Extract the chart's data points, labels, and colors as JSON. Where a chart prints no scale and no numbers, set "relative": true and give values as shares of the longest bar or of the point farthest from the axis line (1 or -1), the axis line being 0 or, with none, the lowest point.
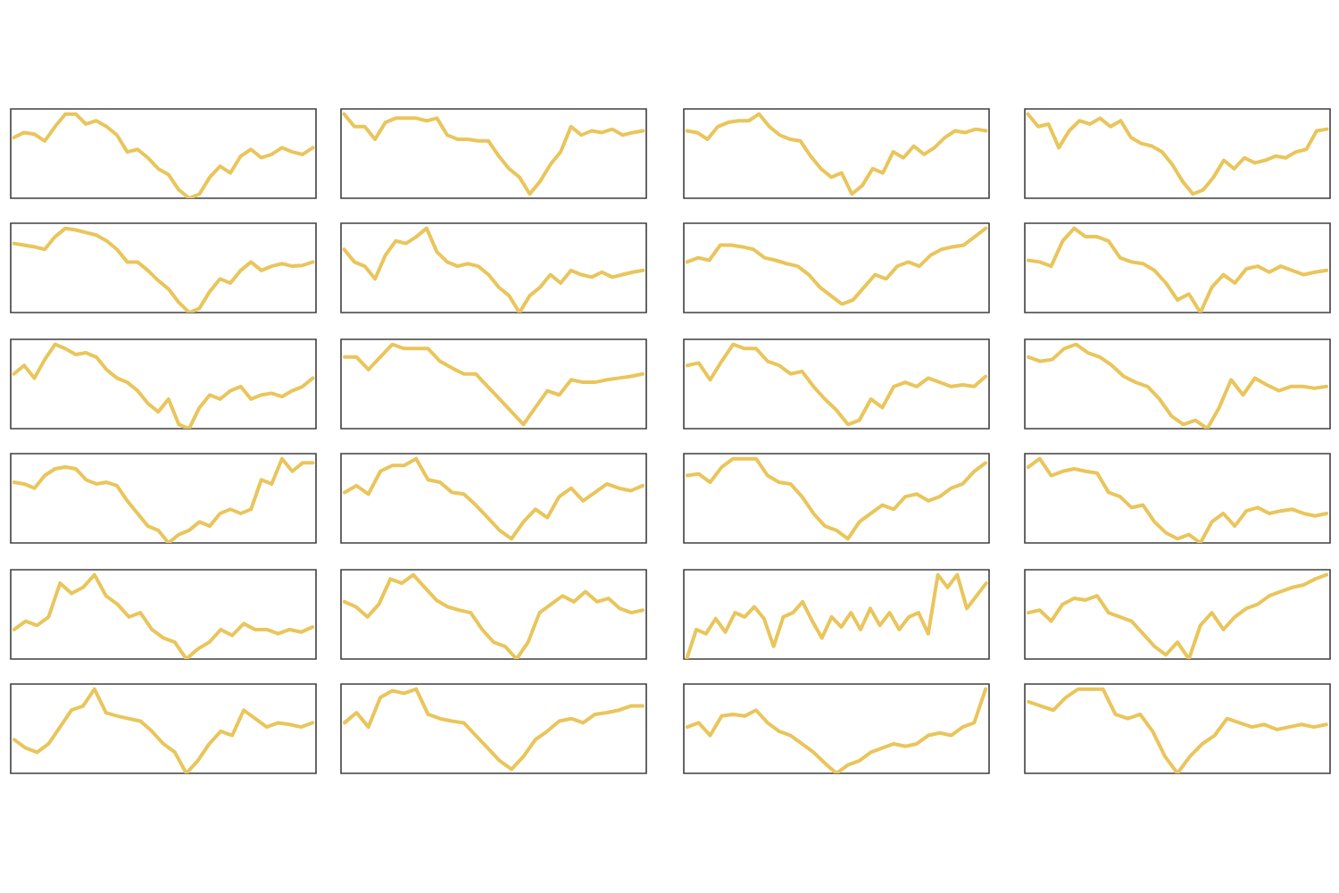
{
  "chart_data": [
    {
      "type": "line",
      "relative": true,
      "color": "#e9c55b",
      "categories": [
        null,
        null,
        null,
        null,
        null,
        null,
        null,
        null,
        null,
        null,
        null,
        null,
        null,
        null,
        null,
        null,
        null,
        null,
        null,
        null,
        null,
        null,
        null,
        null,
        null,
        null,
        null,
        null,
        null,
        null
      ],
      "values": [
        0.72,
        0.78,
        0.76,
        0.68,
        0.85,
        1.0,
        1.0,
        0.88,
        0.92,
        0.85,
        0.75,
        0.55,
        0.58,
        0.48,
        0.35,
        0.28,
        0.1,
        0.0,
        0.05,
        0.25,
        0.38,
        0.3,
        0.5,
        0.58,
        0.48,
        0.52,
        0.6,
        0.55,
        0.52,
        0.6
      ]
    },
    {
      "type": "line",
      "relative": true,
      "color": "#e9c55b",
      "categories": [
        null,
        null,
        null,
        null,
        null,
        null,
        null,
        null,
        null,
        null,
        null,
        null,
        null,
        null,
        null,
        null,
        null,
        null,
        null,
        null,
        null,
        null,
        null,
        null,
        null,
        null,
        null,
        null,
        null,
        null
      ],
      "values": [
        1.0,
        0.85,
        0.85,
        0.7,
        0.9,
        0.95,
        0.95,
        0.95,
        0.92,
        0.95,
        0.75,
        0.7,
        0.7,
        0.68,
        0.68,
        0.5,
        0.35,
        0.25,
        0.05,
        0.2,
        0.4,
        0.55,
        0.85,
        0.75,
        0.8,
        0.78,
        0.82,
        0.75,
        0.78,
        0.8
      ]
    },
    {
      "type": "line",
      "relative": true,
      "color": "#e9c55b",
      "categories": [
        null,
        null,
        null,
        null,
        null,
        null,
        null,
        null,
        null,
        null,
        null,
        null,
        null,
        null,
        null,
        null,
        null,
        null,
        null,
        null,
        null,
        null,
        null,
        null,
        null,
        null,
        null,
        null,
        null,
        null
      ],
      "values": [
        0.8,
        0.78,
        0.7,
        0.85,
        0.9,
        0.92,
        0.92,
        1.0,
        0.85,
        0.75,
        0.7,
        0.68,
        0.5,
        0.35,
        0.25,
        0.3,
        0.05,
        0.15,
        0.35,
        0.3,
        0.55,
        0.48,
        0.62,
        0.52,
        0.6,
        0.72,
        0.8,
        0.78,
        0.82,
        0.8
      ]
    },
    {
      "type": "line",
      "relative": true,
      "color": "#e9c55b",
      "categories": [
        null,
        null,
        null,
        null,
        null,
        null,
        null,
        null,
        null,
        null,
        null,
        null,
        null,
        null,
        null,
        null,
        null,
        null,
        null,
        null,
        null,
        null,
        null,
        null,
        null,
        null,
        null,
        null,
        null,
        null
      ],
      "values": [
        1.0,
        0.85,
        0.88,
        0.6,
        0.8,
        0.92,
        0.88,
        0.95,
        0.85,
        0.92,
        0.72,
        0.65,
        0.62,
        0.55,
        0.4,
        0.2,
        0.05,
        0.1,
        0.25,
        0.45,
        0.35,
        0.48,
        0.42,
        0.45,
        0.5,
        0.48,
        0.55,
        0.58,
        0.8,
        0.82
      ]
    },
    {
      "type": "line",
      "relative": true,
      "color": "#e9c55b",
      "categories": [
        null,
        null,
        null,
        null,
        null,
        null,
        null,
        null,
        null,
        null,
        null,
        null,
        null,
        null,
        null,
        null,
        null,
        null,
        null,
        null,
        null,
        null,
        null,
        null,
        null,
        null,
        null,
        null,
        null,
        null
      ],
      "values": [
        0.82,
        0.8,
        0.78,
        0.75,
        0.9,
        1.0,
        0.98,
        0.95,
        0.92,
        0.85,
        0.75,
        0.6,
        0.6,
        0.5,
        0.38,
        0.28,
        0.12,
        0.0,
        0.05,
        0.25,
        0.4,
        0.35,
        0.5,
        0.6,
        0.5,
        0.55,
        0.58,
        0.55,
        0.56,
        0.6
      ]
    },
    {
      "type": "line",
      "relative": true,
      "color": "#e9c55b",
      "categories": [
        null,
        null,
        null,
        null,
        null,
        null,
        null,
        null,
        null,
        null,
        null,
        null,
        null,
        null,
        null,
        null,
        null,
        null,
        null,
        null,
        null,
        null,
        null,
        null,
        null,
        null,
        null,
        null,
        null,
        null
      ],
      "values": [
        0.75,
        0.6,
        0.55,
        0.4,
        0.68,
        0.85,
        0.82,
        0.9,
        1.0,
        0.72,
        0.6,
        0.55,
        0.58,
        0.55,
        0.45,
        0.3,
        0.2,
        0.0,
        0.2,
        0.3,
        0.45,
        0.35,
        0.5,
        0.45,
        0.42,
        0.48,
        0.42,
        0.45,
        0.48,
        0.5
      ]
    },
    {
      "type": "line",
      "relative": true,
      "color": "#e9c55b",
      "categories": [
        null,
        null,
        null,
        null,
        null,
        null,
        null,
        null,
        null,
        null,
        null,
        null,
        null,
        null,
        null,
        null,
        null,
        null,
        null,
        null,
        null,
        null,
        null,
        null,
        null,
        null,
        null,
        null
      ],
      "values": [
        0.6,
        0.65,
        0.62,
        0.8,
        0.8,
        0.78,
        0.75,
        0.65,
        0.62,
        0.58,
        0.55,
        0.45,
        0.3,
        0.2,
        0.1,
        0.15,
        0.3,
        0.45,
        0.4,
        0.55,
        0.6,
        0.55,
        0.68,
        0.75,
        0.78,
        0.8,
        0.9,
        1.0
      ]
    },
    {
      "type": "line",
      "relative": true,
      "color": "#e9c55b",
      "categories": [
        null,
        null,
        null,
        null,
        null,
        null,
        null,
        null,
        null,
        null,
        null,
        null,
        null,
        null,
        null,
        null,
        null,
        null,
        null,
        null,
        null,
        null,
        null,
        null,
        null,
        null,
        null
      ],
      "values": [
        0.62,
        0.6,
        0.55,
        0.85,
        1.0,
        0.9,
        0.9,
        0.85,
        0.65,
        0.6,
        0.58,
        0.5,
        0.35,
        0.15,
        0.22,
        0.0,
        0.3,
        0.45,
        0.35,
        0.52,
        0.55,
        0.48,
        0.55,
        0.5,
        0.45,
        0.48,
        0.5
      ]
    },
    {
      "type": "line",
      "relative": true,
      "color": "#e9c55b",
      "categories": [
        null,
        null,
        null,
        null,
        null,
        null,
        null,
        null,
        null,
        null,
        null,
        null,
        null,
        null,
        null,
        null,
        null,
        null,
        null,
        null,
        null,
        null,
        null,
        null,
        null,
        null,
        null,
        null,
        null,
        null
      ],
      "values": [
        0.65,
        0.75,
        0.6,
        0.82,
        1.0,
        0.95,
        0.88,
        0.9,
        0.85,
        0.7,
        0.6,
        0.55,
        0.45,
        0.3,
        0.2,
        0.35,
        0.05,
        0.0,
        0.25,
        0.4,
        0.35,
        0.45,
        0.5,
        0.35,
        0.4,
        0.42,
        0.38,
        0.45,
        0.5,
        0.6
      ]
    },
    {
      "type": "line",
      "relative": true,
      "color": "#e9c55b",
      "categories": [
        null,
        null,
        null,
        null,
        null,
        null,
        null,
        null,
        null,
        null,
        null,
        null,
        null,
        null,
        null,
        null,
        null,
        null,
        null,
        null,
        null,
        null,
        null,
        null,
        null,
        null
      ],
      "values": [
        0.85,
        0.85,
        0.7,
        0.85,
        1.0,
        0.95,
        0.95,
        0.95,
        0.8,
        0.72,
        0.65,
        0.65,
        0.5,
        0.35,
        0.2,
        0.05,
        0.25,
        0.45,
        0.4,
        0.58,
        0.55,
        0.55,
        0.58,
        0.6,
        0.62,
        0.65
      ]
    },
    {
      "type": "line",
      "relative": true,
      "color": "#e9c55b",
      "categories": [
        null,
        null,
        null,
        null,
        null,
        null,
        null,
        null,
        null,
        null,
        null,
        null,
        null,
        null,
        null,
        null,
        null,
        null,
        null,
        null,
        null,
        null,
        null,
        null,
        null,
        null,
        null
      ],
      "values": [
        0.75,
        0.78,
        0.58,
        0.8,
        1.0,
        0.95,
        0.95,
        0.8,
        0.75,
        0.65,
        0.68,
        0.5,
        0.35,
        0.22,
        0.05,
        0.1,
        0.35,
        0.25,
        0.5,
        0.55,
        0.5,
        0.6,
        0.55,
        0.5,
        0.52,
        0.5,
        0.62
      ]
    },
    {
      "type": "line",
      "relative": true,
      "color": "#e9c55b",
      "categories": [
        null,
        null,
        null,
        null,
        null,
        null,
        null,
        null,
        null,
        null,
        null,
        null,
        null,
        null,
        null,
        null,
        null,
        null,
        null,
        null,
        null,
        null,
        null,
        null,
        null,
        null
      ],
      "values": [
        0.85,
        0.8,
        0.82,
        0.95,
        1.0,
        0.9,
        0.85,
        0.75,
        0.62,
        0.55,
        0.5,
        0.35,
        0.15,
        0.05,
        0.1,
        0.0,
        0.25,
        0.58,
        0.4,
        0.6,
        0.52,
        0.45,
        0.5,
        0.5,
        0.48,
        0.5
      ]
    },
    {
      "type": "line",
      "relative": true,
      "color": "#e9c55b",
      "categories": [
        null,
        null,
        null,
        null,
        null,
        null,
        null,
        null,
        null,
        null,
        null,
        null,
        null,
        null,
        null,
        null,
        null,
        null,
        null,
        null,
        null,
        null,
        null,
        null,
        null,
        null,
        null,
        null,
        null,
        null
      ],
      "values": [
        0.72,
        0.7,
        0.65,
        0.8,
        0.88,
        0.9,
        0.88,
        0.75,
        0.7,
        0.72,
        0.68,
        0.5,
        0.35,
        0.2,
        0.15,
        0.0,
        0.1,
        0.15,
        0.25,
        0.2,
        0.35,
        0.4,
        0.35,
        0.4,
        0.75,
        0.7,
        1.0,
        0.85,
        0.95,
        0.95
      ]
    },
    {
      "type": "line",
      "relative": true,
      "color": "#e9c55b",
      "categories": [
        null,
        null,
        null,
        null,
        null,
        null,
        null,
        null,
        null,
        null,
        null,
        null,
        null,
        null,
        null,
        null,
        null,
        null,
        null,
        null,
        null,
        null,
        null,
        null,
        null,
        null
      ],
      "values": [
        0.6,
        0.68,
        0.58,
        0.85,
        0.92,
        0.92,
        1.0,
        0.75,
        0.72,
        0.6,
        0.58,
        0.45,
        0.3,
        0.15,
        0.05,
        0.25,
        0.4,
        0.3,
        0.55,
        0.65,
        0.5,
        0.6,
        0.7,
        0.65,
        0.62,
        0.68
      ]
    },
    {
      "type": "line",
      "relative": true,
      "color": "#e9c55b",
      "categories": [
        null,
        null,
        null,
        null,
        null,
        null,
        null,
        null,
        null,
        null,
        null,
        null,
        null,
        null,
        null,
        null,
        null,
        null,
        null,
        null,
        null,
        null,
        null,
        null,
        null,
        null,
        null
      ],
      "values": [
        0.8,
        0.82,
        0.72,
        0.9,
        1.0,
        1.0,
        1.0,
        0.8,
        0.72,
        0.7,
        0.55,
        0.35,
        0.2,
        0.15,
        0.05,
        0.25,
        0.35,
        0.45,
        0.4,
        0.55,
        0.58,
        0.5,
        0.55,
        0.65,
        0.7,
        0.85,
        0.95
      ]
    },
    {
      "type": "line",
      "relative": true,
      "color": "#e9c55b",
      "categories": [
        null,
        null,
        null,
        null,
        null,
        null,
        null,
        null,
        null,
        null,
        null,
        null,
        null,
        null,
        null,
        null,
        null,
        null,
        null,
        null,
        null,
        null,
        null,
        null,
        null,
        null,
        null
      ],
      "values": [
        0.9,
        1.0,
        0.8,
        0.85,
        0.88,
        0.85,
        0.83,
        0.6,
        0.55,
        0.42,
        0.45,
        0.25,
        0.12,
        0.05,
        0.1,
        0.0,
        0.25,
        0.35,
        0.2,
        0.38,
        0.42,
        0.35,
        0.38,
        0.4,
        0.35,
        0.32,
        0.35
      ]
    },
    {
      "type": "line",
      "relative": true,
      "color": "#e9c55b",
      "categories": [
        null,
        null,
        null,
        null,
        null,
        null,
        null,
        null,
        null,
        null,
        null,
        null,
        null,
        null,
        null,
        null,
        null,
        null,
        null,
        null,
        null,
        null,
        null,
        null,
        null,
        null,
        null
      ],
      "values": [
        0.35,
        0.45,
        0.4,
        0.5,
        0.9,
        0.78,
        0.85,
        1.0,
        0.75,
        0.65,
        0.5,
        0.55,
        0.35,
        0.25,
        0.2,
        0.0,
        0.12,
        0.2,
        0.35,
        0.28,
        0.42,
        0.35,
        0.35,
        0.3,
        0.35,
        0.32,
        0.38
      ]
    },
    {
      "type": "line",
      "relative": true,
      "color": "#e9c55b",
      "categories": [
        null,
        null,
        null,
        null,
        null,
        null,
        null,
        null,
        null,
        null,
        null,
        null,
        null,
        null,
        null,
        null,
        null,
        null,
        null,
        null,
        null,
        null,
        null,
        null,
        null,
        null,
        null
      ],
      "values": [
        0.68,
        0.62,
        0.5,
        0.65,
        0.95,
        0.9,
        1.0,
        0.85,
        0.7,
        0.62,
        0.58,
        0.55,
        0.35,
        0.2,
        0.15,
        0.0,
        0.2,
        0.55,
        0.65,
        0.75,
        0.68,
        0.8,
        0.68,
        0.72,
        0.6,
        0.55,
        0.58
      ]
    },
    {
      "type": "line",
      "relative": true,
      "color": "#e9c55b",
      "categories": [
        null,
        null,
        null,
        null,
        null,
        null,
        null,
        null,
        null,
        null,
        null,
        null,
        null,
        null,
        null,
        null,
        null,
        null,
        null,
        null,
        null,
        null,
        null,
        null,
        null,
        null,
        null,
        null,
        null,
        null,
        null,
        null
      ],
      "values": [
        0.0,
        0.35,
        0.3,
        0.48,
        0.32,
        0.55,
        0.5,
        0.62,
        0.48,
        0.15,
        0.5,
        0.55,
        0.68,
        0.45,
        0.25,
        0.5,
        0.38,
        0.55,
        0.35,
        0.6,
        0.4,
        0.55,
        0.35,
        0.5,
        0.55,
        0.3,
        1.0,
        0.85,
        1.0,
        0.6,
        0.75,
        0.9
      ]
    },
    {
      "type": "line",
      "relative": true,
      "color": "#e9c55b",
      "categories": [
        null,
        null,
        null,
        null,
        null,
        null,
        null,
        null,
        null,
        null,
        null,
        null,
        null,
        null,
        null,
        null,
        null,
        null,
        null,
        null,
        null,
        null,
        null,
        null,
        null,
        null,
        null
      ],
      "values": [
        0.55,
        0.58,
        0.45,
        0.65,
        0.72,
        0.7,
        0.75,
        0.55,
        0.5,
        0.45,
        0.3,
        0.15,
        0.05,
        0.2,
        0.0,
        0.4,
        0.55,
        0.35,
        0.5,
        0.6,
        0.65,
        0.75,
        0.8,
        0.85,
        0.88,
        0.95,
        1.0
      ]
    },
    {
      "type": "line",
      "relative": true,
      "color": "#e9c55b",
      "categories": [
        null,
        null,
        null,
        null,
        null,
        null,
        null,
        null,
        null,
        null,
        null,
        null,
        null,
        null,
        null,
        null,
        null,
        null,
        null,
        null,
        null,
        null,
        null,
        null,
        null,
        null,
        null
      ],
      "values": [
        0.4,
        0.3,
        0.25,
        0.35,
        0.55,
        0.75,
        0.8,
        1.0,
        0.72,
        0.68,
        0.65,
        0.62,
        0.5,
        0.35,
        0.25,
        0.0,
        0.15,
        0.35,
        0.5,
        0.45,
        0.75,
        0.65,
        0.55,
        0.6,
        0.58,
        0.55,
        0.6
      ]
    },
    {
      "type": "line",
      "relative": true,
      "color": "#e9c55b",
      "categories": [
        null,
        null,
        null,
        null,
        null,
        null,
        null,
        null,
        null,
        null,
        null,
        null,
        null,
        null,
        null,
        null,
        null,
        null,
        null,
        null,
        null,
        null,
        null,
        null,
        null,
        null
      ],
      "values": [
        0.6,
        0.72,
        0.55,
        0.9,
        0.98,
        0.95,
        1.0,
        0.7,
        0.65,
        0.62,
        0.6,
        0.45,
        0.3,
        0.15,
        0.05,
        0.2,
        0.4,
        0.5,
        0.62,
        0.65,
        0.6,
        0.7,
        0.72,
        0.75,
        0.8,
        0.8
      ]
    },
    {
      "type": "line",
      "relative": true,
      "color": "#e9c55b",
      "categories": [
        null,
        null,
        null,
        null,
        null,
        null,
        null,
        null,
        null,
        null,
        null,
        null,
        null,
        null,
        null,
        null,
        null,
        null,
        null,
        null,
        null,
        null,
        null,
        null,
        null,
        null,
        null
      ],
      "values": [
        0.55,
        0.6,
        0.45,
        0.68,
        0.7,
        0.68,
        0.75,
        0.6,
        0.5,
        0.45,
        0.35,
        0.25,
        0.12,
        0.0,
        0.1,
        0.15,
        0.25,
        0.3,
        0.35,
        0.32,
        0.35,
        0.45,
        0.48,
        0.45,
        0.55,
        0.6,
        1.0
      ]
    },
    {
      "type": "line",
      "relative": true,
      "color": "#e9c55b",
      "categories": [
        null,
        null,
        null,
        null,
        null,
        null,
        null,
        null,
        null,
        null,
        null,
        null,
        null,
        null,
        null,
        null,
        null,
        null,
        null,
        null,
        null,
        null,
        null,
        null,
        null
      ],
      "values": [
        0.85,
        0.8,
        0.75,
        0.9,
        1.0,
        1.0,
        1.0,
        0.7,
        0.65,
        0.7,
        0.5,
        0.2,
        0.0,
        0.2,
        0.35,
        0.45,
        0.65,
        0.6,
        0.55,
        0.58,
        0.52,
        0.55,
        0.58,
        0.55,
        0.58
      ]
    }
  ]
}
